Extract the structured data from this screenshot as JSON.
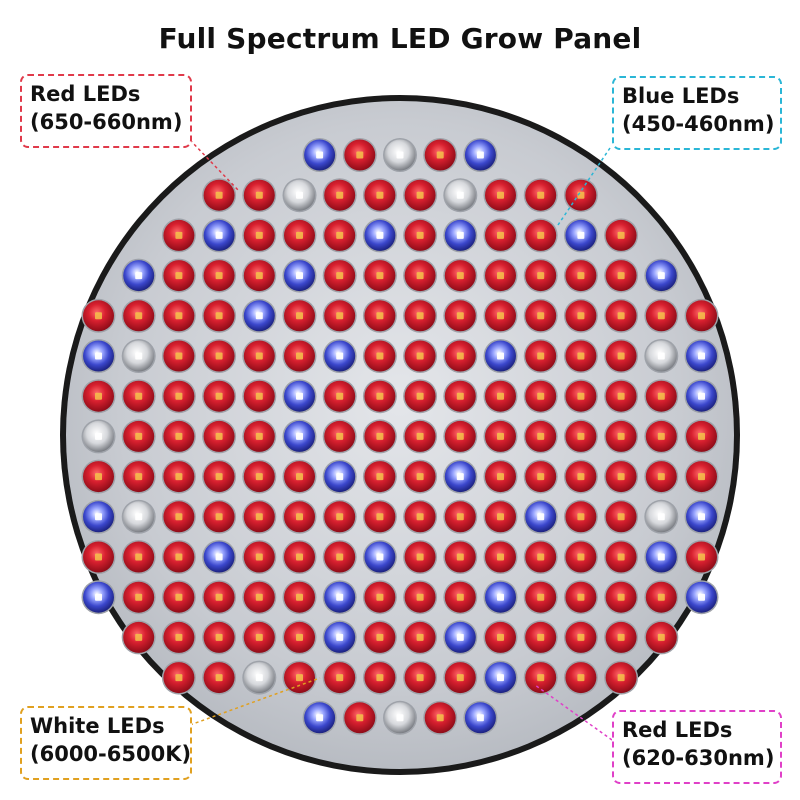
{
  "title": "Full Spectrum LED Grow Panel",
  "colors": {
    "red_led": "#d01f2e",
    "blue_led": "#3a46c8",
    "white_led": "#e8e8e8",
    "panel": "#c9ccd2",
    "rim": "#1a1a1a",
    "callout_red_top": "#e03a4a",
    "callout_blue": "#2ab6d6",
    "callout_white": "#e0a020",
    "callout_red_bottom": "#e040c8"
  },
  "callouts": {
    "red_top": {
      "line1": "Red LEDs",
      "line2": "(650-660nm)"
    },
    "blue": {
      "line1": "Blue LEDs",
      "line2": "(450-460nm)"
    },
    "white": {
      "line1": "White LEDs",
      "line2": "(6000-6500K)"
    },
    "red_bottom": {
      "line1": "Red LEDs",
      "line2": "(620-630nm)"
    }
  },
  "led_rows": [
    "BRWRB",
    "RRWRRRWRRR",
    "RBRRRBRBRRBR",
    "BRRRBRRRRRRRRB",
    "RRRRBRRRRRRRRRRR",
    "BWRRRRBRRRBRRRWB",
    "RRRRRBRRRRRRRRRB",
    "WRRRRBRRRRRRRRRR",
    "RRRRRRBRRBRRRRRR",
    "BWRRRRRRRRRBRRWB",
    "RRRBRRRBRRRRRRBR",
    "BRRRRRBRRRBRRRRB",
    "RRRRRBRRBRRRRR",
    "RRWRRRRRBRRR",
    "BRWRB"
  ]
}
